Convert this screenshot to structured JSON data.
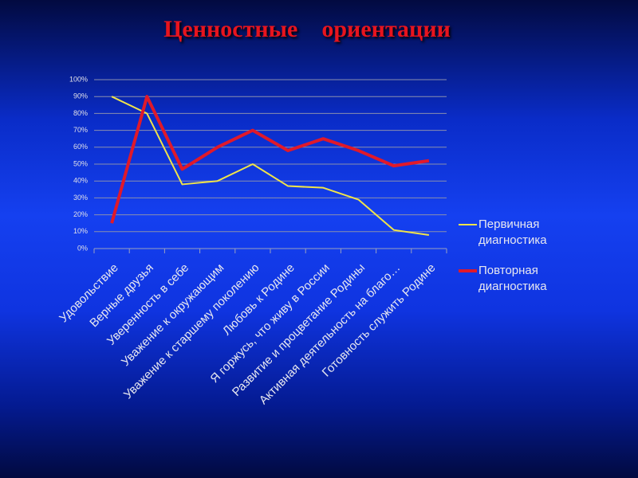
{
  "chart_data": {
    "type": "line",
    "title": "Ценностные    ориентации",
    "categories": [
      "Удовольствие",
      "Верные друзья",
      "Уверенность в себе",
      "Уважение к окружающим",
      "Уважение к старшему поколению",
      "Любовь к Родине",
      "Я горжусь, что живу в России",
      "Развитие и процветание Родины",
      "Активная деятельность на благо…",
      "Готовность служить Родине"
    ],
    "series": [
      {
        "name": "Первичная диагностика",
        "color": "#f0e44a",
        "values": [
          90,
          80,
          38,
          40,
          50,
          37,
          36,
          29,
          11,
          8
        ]
      },
      {
        "name": "Повторная диагностика",
        "color": "#e0192a",
        "values": [
          15,
          90,
          47,
          60,
          70,
          58,
          65,
          58,
          49,
          52
        ]
      }
    ],
    "ylim": [
      0,
      100
    ],
    "yticks": [
      {
        "value": 0,
        "label": "0%"
      },
      {
        "value": 10,
        "label": "10%"
      },
      {
        "value": 20,
        "label": "20%"
      },
      {
        "value": 30,
        "label": "30%"
      },
      {
        "value": 40,
        "label": "40%"
      },
      {
        "value": 50,
        "label": "50%"
      },
      {
        "value": 60,
        "label": "60%"
      },
      {
        "value": 70,
        "label": "70%"
      },
      {
        "value": 80,
        "label": "80%"
      },
      {
        "value": 90,
        "label": "90%"
      },
      {
        "value": 100,
        "label": "100%"
      }
    ],
    "grid": true,
    "legend": "right"
  }
}
